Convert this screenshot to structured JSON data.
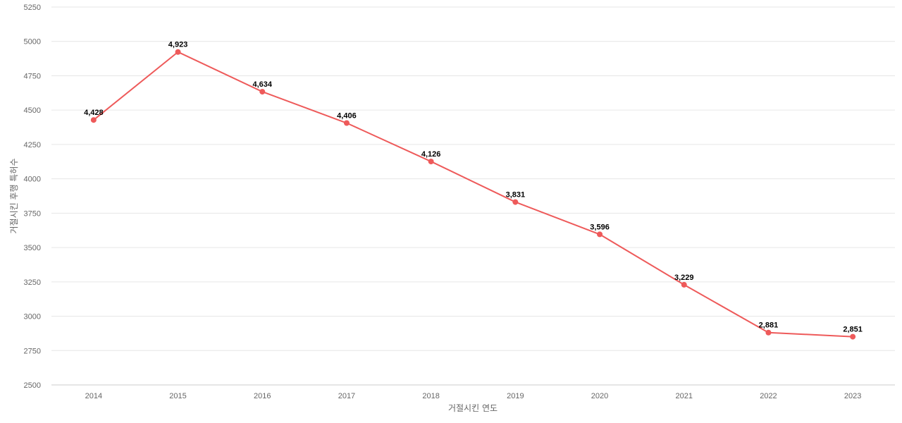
{
  "chart_data": {
    "type": "line",
    "xlabel": "거절시킨 연도",
    "ylabel": "거절시킨 후행 특허수",
    "ylim": [
      2500,
      5250
    ],
    "yticks": [
      2500,
      2750,
      3000,
      3250,
      3500,
      3750,
      4000,
      4250,
      4500,
      4750,
      5000,
      5250
    ],
    "grid": true,
    "legend": "none",
    "categories": [
      "2014",
      "2015",
      "2016",
      "2017",
      "2018",
      "2019",
      "2020",
      "2021",
      "2022",
      "2023"
    ],
    "series": [
      {
        "values": [
          4428,
          4923,
          4634,
          4406,
          4126,
          3831,
          3596,
          3229,
          2881,
          2851
        ],
        "labels": [
          "4,428",
          "4,923",
          "4,634",
          "4,406",
          "4,126",
          "3,831",
          "3,596",
          "3,229",
          "2,881",
          "2,851"
        ],
        "color": "#ee5a5a"
      }
    ]
  },
  "colors": {
    "line": "#ee5a5a",
    "grid": "#e6e6e6",
    "tick_text": "#666666",
    "label_text": "#000000"
  }
}
